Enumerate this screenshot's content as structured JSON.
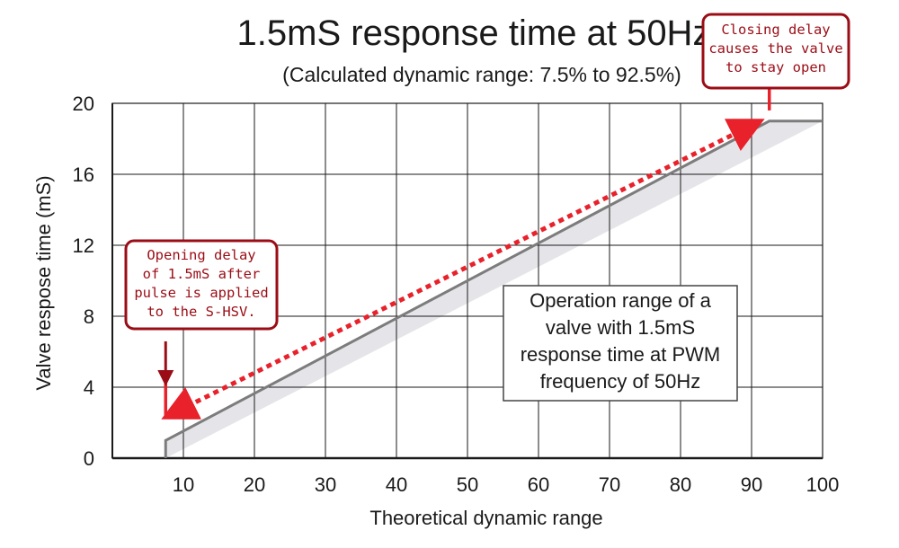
{
  "chart_data": {
    "type": "area",
    "title": "1.5mS response time at 50Hz",
    "subtitle": "(Calculated dynamic range: 7.5% to 92.5%)",
    "xlabel": "Theoretical dynamic range",
    "ylabel": "Valve respose time (mS)",
    "xlim": [
      0,
      100
    ],
    "ylim": [
      0,
      20
    ],
    "x_ticks": [
      "10",
      "20",
      "30",
      "40",
      "50",
      "60",
      "70",
      "80",
      "90",
      "100"
    ],
    "y_ticks": [
      "20",
      "16",
      "12",
      "8",
      "4",
      "0"
    ],
    "grid": true,
    "series": [
      {
        "name": "Operating range",
        "x": [
          7.5,
          7.5,
          92.5,
          100
        ],
        "y": [
          0,
          1.0,
          19.0,
          19.0
        ]
      }
    ],
    "annotations": {
      "closing_delay": {
        "lines": [
          "Closing delay",
          "causes the valve",
          "to stay open"
        ],
        "x": 92.5,
        "y": 19.0
      },
      "opening_delay": {
        "lines": [
          "Opening delay",
          "of 1.5mS after",
          "pulse is applied",
          "to the S-HSV."
        ],
        "x": 7.5,
        "y": 1.0
      },
      "operation_range": {
        "lines": [
          "Operation range of a",
          "valve with 1.5mS",
          "response time at PWM",
          "frequency of 50Hz"
        ]
      }
    },
    "colors": {
      "fill": "#e5e5e9",
      "line": "#7c7c7c",
      "grid": "#1a1a1a",
      "arrow": "#e8212b",
      "callout": "#9b0d16"
    }
  }
}
